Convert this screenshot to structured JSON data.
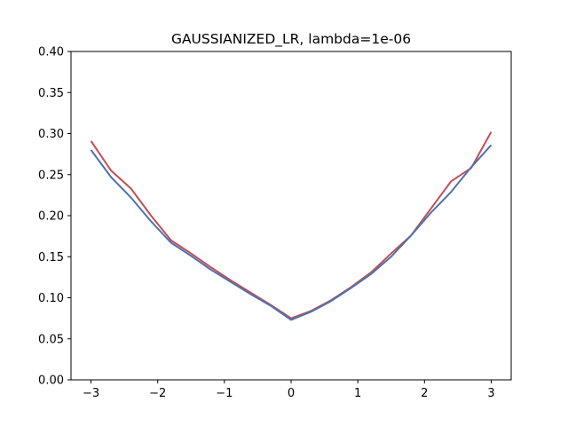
{
  "chart_data": {
    "type": "line",
    "title": "GAUSSIANIZED_LR, lambda=1e-06",
    "xlabel": "",
    "ylabel": "",
    "xlim": [
      -3.3,
      3.3
    ],
    "ylim": [
      0.0,
      0.4
    ],
    "grid": false,
    "xticks": [
      -3,
      -2,
      -1,
      0,
      1,
      2,
      3
    ],
    "xtick_labels": [
      "−3",
      "−2",
      "−1",
      "0",
      "1",
      "2",
      "3"
    ],
    "yticks": [
      0.0,
      0.05,
      0.1,
      0.15,
      0.2,
      0.25,
      0.3,
      0.35,
      0.4
    ],
    "ytick_labels": [
      "0.00",
      "0.05",
      "0.10",
      "0.15",
      "0.20",
      "0.25",
      "0.30",
      "0.35",
      "0.40"
    ],
    "x": [
      -3.0,
      -2.7,
      -2.4,
      -2.1,
      -1.8,
      -1.5,
      -1.2,
      -0.9,
      -0.6,
      -0.3,
      0.0,
      0.3,
      0.6,
      0.9,
      1.2,
      1.5,
      1.8,
      2.1,
      2.4,
      2.7,
      3.0
    ],
    "series": [
      {
        "color": "#c44e52",
        "values": [
          0.291,
          0.255,
          0.233,
          0.2,
          0.17,
          0.154,
          0.137,
          0.121,
          0.106,
          0.091,
          0.075,
          0.084,
          0.097,
          0.113,
          0.131,
          0.154,
          0.176,
          0.209,
          0.242,
          0.258,
          0.302
        ]
      },
      {
        "color": "#4c72b0",
        "values": [
          0.28,
          0.247,
          0.222,
          0.193,
          0.167,
          0.151,
          0.134,
          0.119,
          0.104,
          0.09,
          0.073,
          0.083,
          0.096,
          0.112,
          0.129,
          0.15,
          0.176,
          0.204,
          0.229,
          0.259,
          0.286
        ]
      }
    ]
  }
}
